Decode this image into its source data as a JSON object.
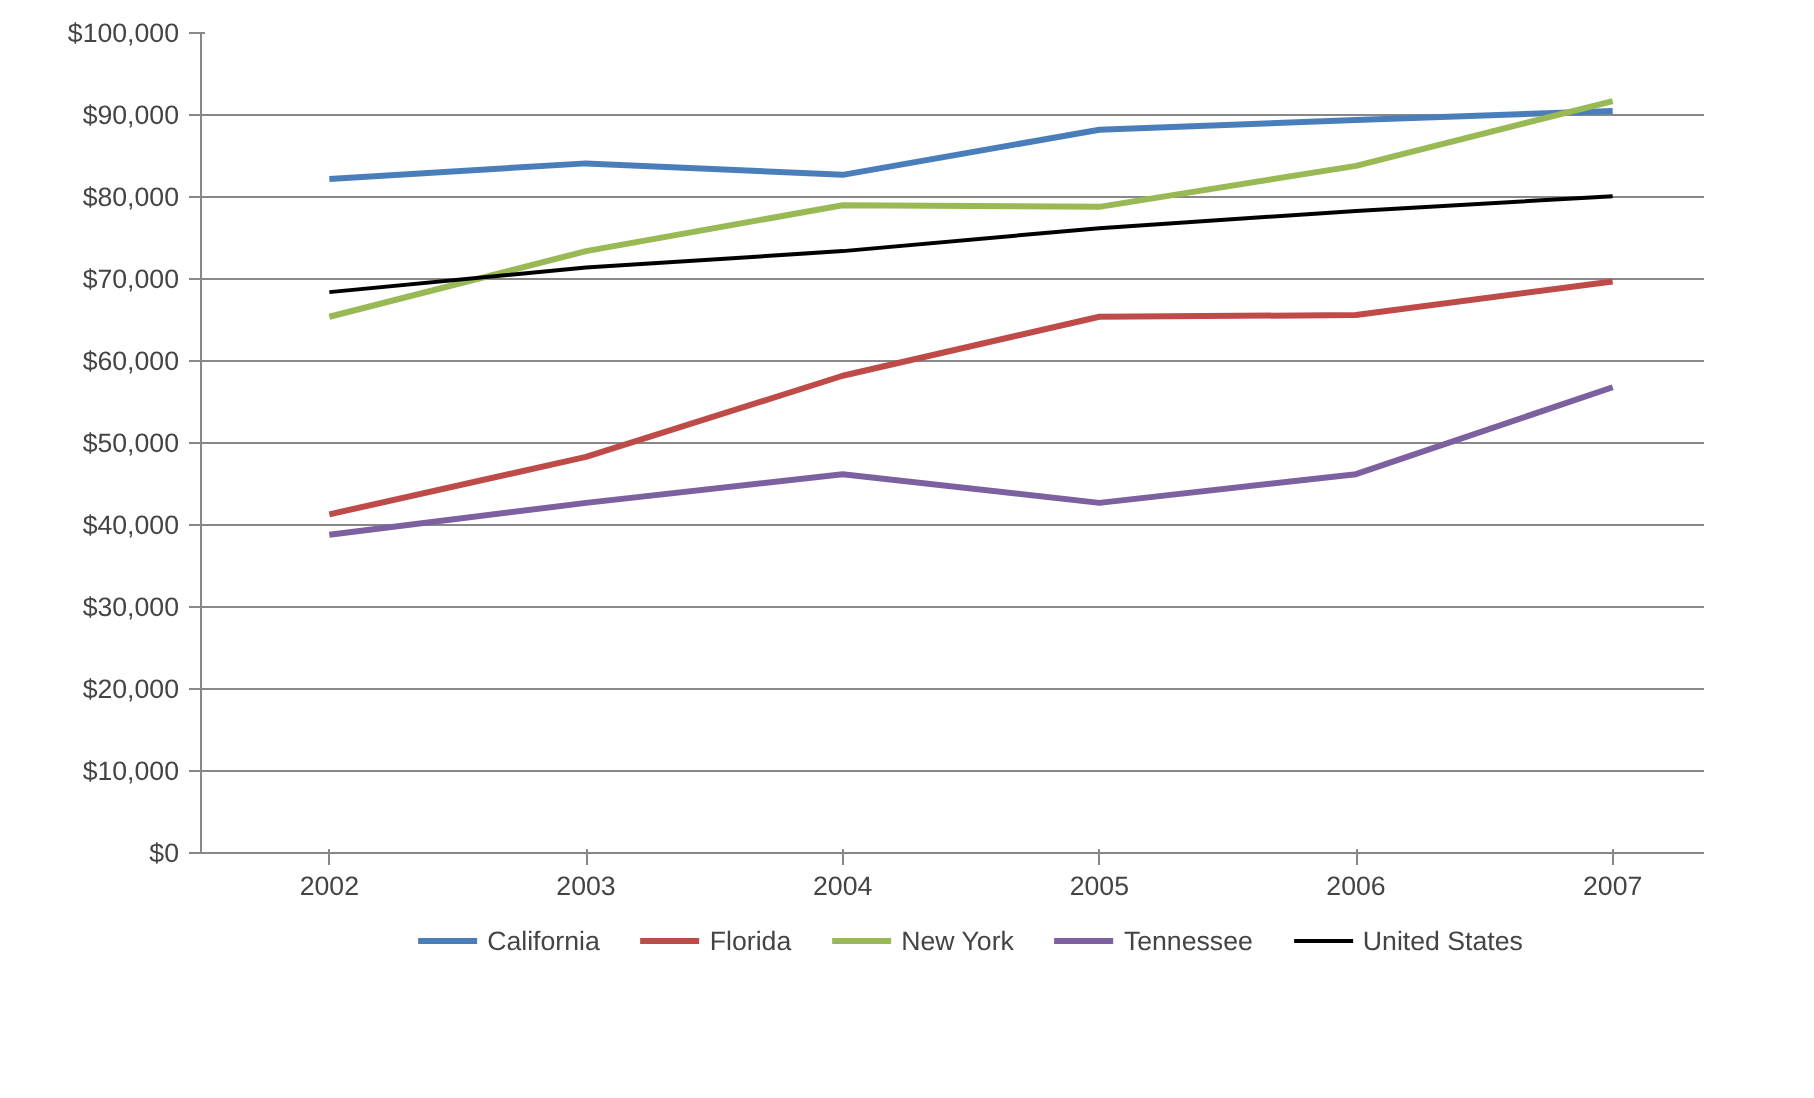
{
  "chart_data": {
    "type": "line",
    "categories": [
      "2002",
      "2003",
      "2004",
      "2005",
      "2006",
      "2007"
    ],
    "series": [
      {
        "name": "California",
        "color": "#4a7ebb",
        "values": [
          82200,
          84100,
          82700,
          88200,
          89400,
          90500
        ]
      },
      {
        "name": "Florida",
        "color": "#be4b48",
        "values": [
          41300,
          48300,
          58200,
          65400,
          65600,
          69700
        ]
      },
      {
        "name": "New York",
        "color": "#98b954",
        "values": [
          65400,
          73400,
          79000,
          78800,
          83800,
          91700
        ]
      },
      {
        "name": "Tennessee",
        "color": "#7d60a0",
        "values": [
          38800,
          42700,
          46200,
          42700,
          46200,
          56800
        ]
      },
      {
        "name": "United States",
        "color": "#000000",
        "values": [
          68400,
          71400,
          73400,
          76200,
          78300,
          80100
        ]
      }
    ],
    "ylim": [
      0,
      100000
    ],
    "yticks": [
      {
        "value": 0,
        "label": "$0"
      },
      {
        "value": 10000,
        "label": "$10,000"
      },
      {
        "value": 20000,
        "label": "$20,000"
      },
      {
        "value": 30000,
        "label": "$30,000"
      },
      {
        "value": 40000,
        "label": "$40,000"
      },
      {
        "value": 50000,
        "label": "$50,000"
      },
      {
        "value": 60000,
        "label": "$60,000"
      },
      {
        "value": 70000,
        "label": "$70,000"
      },
      {
        "value": 80000,
        "label": "$80,000"
      },
      {
        "value": 90000,
        "label": "$90,000"
      },
      {
        "value": 100000,
        "label": "$100,000"
      }
    ],
    "grid": "y",
    "legend": "bottom",
    "marker": "none",
    "line_style": "solid"
  }
}
